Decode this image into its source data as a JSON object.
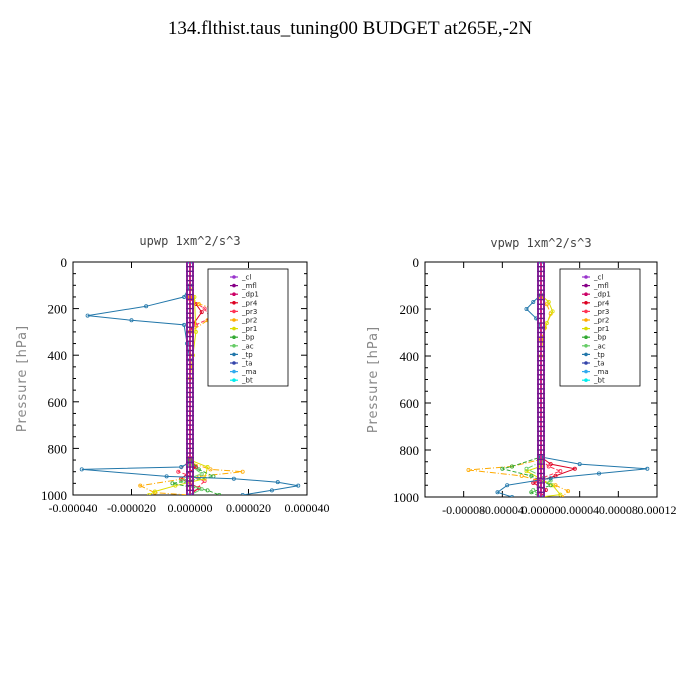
{
  "page_title": "134.flthist.taus_tuning00  BUDGET at265E,-2N",
  "chart_data": [
    {
      "type": "line",
      "title": "upwp   1xm^2/s^3",
      "ylabel": "Pressure [hPa]",
      "ylim": [
        1000,
        0
      ],
      "xlim": [
        -4e-05,
        4e-05
      ],
      "yticks": [
        0,
        200,
        400,
        600,
        800,
        1000
      ],
      "xtick_labels": [
        "-0.000040",
        "-0.000020",
        "0.000000",
        "0.000020",
        "0.000040"
      ],
      "xtick_values": [
        -4e-05,
        -2e-05,
        0.0,
        2e-05,
        4e-05
      ],
      "legend": "top-right",
      "series": [
        {
          "name": "_cl",
          "color": "#9933cc",
          "values": [
            [
              0,
              0
            ],
            [
              0,
              1000
            ]
          ]
        },
        {
          "name": "_mfl",
          "color": "#880088",
          "values": [
            [
              0,
              0
            ],
            [
              0,
              1000
            ]
          ]
        },
        {
          "name": "_dp1",
          "color": "#cc0066",
          "values": [
            [
              0,
              0
            ],
            [
              0,
              1000
            ]
          ]
        },
        {
          "name": "_pr4",
          "color": "#dd0022",
          "values": [
            [
              0,
              0
            ],
            [
              0,
              150
            ],
            [
              2e-06,
              180
            ],
            [
              4e-06,
              215
            ],
            [
              1.5e-06,
              260
            ],
            [
              0,
              300
            ],
            [
              0,
              840
            ],
            [
              2e-06,
              880
            ],
            [
              -3e-06,
              930
            ],
            [
              3e-06,
              970
            ],
            [
              0,
              1000
            ]
          ]
        },
        {
          "name": "_pr3",
          "color": "#ff3355",
          "values": [
            [
              0,
              0
            ],
            [
              0,
              160
            ],
            [
              5e-06,
              200
            ],
            [
              7e-06,
              240
            ],
            [
              2e-06,
              270
            ],
            [
              0,
              300
            ],
            [
              0,
              850
            ],
            [
              -4e-06,
              900
            ],
            [
              5e-06,
              940
            ],
            [
              0,
              1000
            ]
          ]
        },
        {
          "name": "_pr2",
          "color": "#ffaa00",
          "values": [
            [
              0,
              0
            ],
            [
              0,
              150
            ],
            [
              3e-06,
              180
            ],
            [
              8e-06,
              200
            ],
            [
              1.1e-05,
              230
            ],
            [
              6e-06,
              250
            ],
            [
              0,
              300
            ],
            [
              0,
              860
            ],
            [
              7e-06,
              890
            ],
            [
              1.8e-05,
              900
            ],
            [
              3e-06,
              920
            ],
            [
              -1.7e-05,
              960
            ],
            [
              -1.2e-05,
              990
            ],
            [
              0,
              1000
            ]
          ]
        },
        {
          "name": "_pr1",
          "color": "#dddd00",
          "values": [
            [
              0,
              0
            ],
            [
              0,
              100
            ],
            [
              1.5e-06,
              150
            ],
            [
              2e-06,
              300
            ],
            [
              1e-06,
              400
            ],
            [
              0,
              500
            ],
            [
              0,
              850
            ],
            [
              6e-06,
              880
            ],
            [
              5e-06,
              930
            ],
            [
              -5e-06,
              960
            ],
            [
              -1.2e-05,
              985
            ],
            [
              -1.4e-05,
              1000
            ]
          ]
        },
        {
          "name": "_bp",
          "color": "#33aa33",
          "values": [
            [
              0,
              0
            ],
            [
              0,
              850
            ],
            [
              3e-06,
              890
            ],
            [
              8e-06,
              920
            ],
            [
              -6e-06,
              950
            ],
            [
              6e-06,
              980
            ],
            [
              1e-05,
              1000
            ]
          ]
        },
        {
          "name": "_ac",
          "color": "#66cc66",
          "values": [
            [
              0,
              0
            ],
            [
              0,
              870
            ],
            [
              4e-06,
              910
            ],
            [
              -3e-06,
              940
            ],
            [
              4e-06,
              975
            ],
            [
              0,
              1000
            ]
          ]
        },
        {
          "name": "_tp",
          "color": "#2277aa",
          "values": [
            [
              0,
              0
            ],
            [
              0,
              100
            ],
            [
              -2e-06,
              150
            ],
            [
              -1.5e-05,
              190
            ],
            [
              -3.5e-05,
              230
            ],
            [
              -2e-05,
              250
            ],
            [
              -2e-06,
              270
            ],
            [
              -1e-06,
              350
            ],
            [
              0,
              420
            ],
            [
              0,
              860
            ],
            [
              -3e-06,
              880
            ],
            [
              -3.7e-05,
              890
            ],
            [
              -8e-06,
              920
            ],
            [
              1.5e-05,
              930
            ],
            [
              3e-05,
              945
            ],
            [
              3.7e-05,
              960
            ],
            [
              2.8e-05,
              980
            ],
            [
              1.8e-05,
              1000
            ]
          ]
        },
        {
          "name": "_ta",
          "color": "#3344aa",
          "values": [
            [
              0,
              0
            ],
            [
              0,
              1000
            ]
          ]
        },
        {
          "name": "_ma",
          "color": "#33aaee",
          "values": [
            [
              0,
              0
            ],
            [
              0,
              1000
            ]
          ]
        },
        {
          "name": "_bt",
          "color": "#00eeee",
          "values": [
            [
              0,
              0
            ],
            [
              0,
              1000
            ]
          ]
        }
      ]
    },
    {
      "type": "line",
      "title": "vpwp   1xm^2/s^3",
      "ylabel": "Pressure [hPa]",
      "ylim": [
        1000,
        0
      ],
      "xlim": [
        -0.00012,
        0.00012
      ],
      "yticks": [
        0,
        200,
        400,
        600,
        800,
        1000
      ],
      "xtick_labels": [
        "-0.00008",
        "-0.00004",
        "0.00000",
        "0.00004",
        "0.00008",
        "0.00012"
      ],
      "xtick_values": [
        -8e-05,
        -4e-05,
        0.0,
        4e-05,
        8e-05,
        0.00012
      ],
      "legend": "top-right",
      "series": [
        {
          "name": "_cl",
          "color": "#9933cc",
          "values": [
            [
              0,
              0
            ],
            [
              0,
              1000
            ]
          ]
        },
        {
          "name": "_mfl",
          "color": "#880088",
          "values": [
            [
              0,
              0
            ],
            [
              0,
              1000
            ]
          ]
        },
        {
          "name": "_dp1",
          "color": "#cc0066",
          "values": [
            [
              0,
              0
            ],
            [
              0,
              1000
            ]
          ]
        },
        {
          "name": "_pr4",
          "color": "#dd0022",
          "values": [
            [
              0,
              0
            ],
            [
              0,
              830
            ],
            [
              1e-05,
              860
            ],
            [
              3.5e-05,
              880
            ],
            [
              1.5e-05,
              910
            ],
            [
              -8e-06,
              940
            ],
            [
              5e-06,
              970
            ],
            [
              0,
              1000
            ]
          ]
        },
        {
          "name": "_pr3",
          "color": "#ff3355",
          "values": [
            [
              0,
              0
            ],
            [
              0,
              840
            ],
            [
              8e-06,
              870
            ],
            [
              2e-05,
              890
            ],
            [
              -6e-06,
              930
            ],
            [
              0,
              1000
            ]
          ]
        },
        {
          "name": "_pr2",
          "color": "#ffaa00",
          "values": [
            [
              0,
              0
            ],
            [
              0,
              150
            ],
            [
              6e-06,
              180
            ],
            [
              1e-05,
              220
            ],
            [
              4e-06,
              280
            ],
            [
              0,
              330
            ],
            [
              0,
              840
            ],
            [
              -3e-05,
              870
            ],
            [
              -7.5e-05,
              885
            ],
            [
              -2e-05,
              910
            ],
            [
              1.5e-05,
              950
            ],
            [
              2.8e-05,
              975
            ],
            [
              2.2e-05,
              1000
            ]
          ]
        },
        {
          "name": "_pr1",
          "color": "#dddd00",
          "values": [
            [
              0,
              0
            ],
            [
              0,
              140
            ],
            [
              8e-06,
              170
            ],
            [
              1.2e-05,
              210
            ],
            [
              6e-06,
              260
            ],
            [
              2e-06,
              320
            ],
            [
              0,
              400
            ],
            [
              0,
              870
            ],
            [
              -1.5e-05,
              890
            ],
            [
              1.2e-05,
              950
            ],
            [
              2e-05,
              990
            ],
            [
              0,
              1000
            ]
          ]
        },
        {
          "name": "_bp",
          "color": "#33aa33",
          "values": [
            [
              0,
              0
            ],
            [
              0,
              830
            ],
            [
              -3e-05,
              870
            ],
            [
              -4e-05,
              880
            ],
            [
              -1e-05,
              910
            ],
            [
              1e-05,
              950
            ],
            [
              -1e-05,
              980
            ],
            [
              0,
              1000
            ]
          ]
        },
        {
          "name": "_ac",
          "color": "#66cc66",
          "values": [
            [
              0,
              0
            ],
            [
              0,
              850
            ],
            [
              -1.5e-05,
              880
            ],
            [
              1e-05,
              930
            ],
            [
              -8e-06,
              970
            ],
            [
              0,
              1000
            ]
          ]
        },
        {
          "name": "_tp",
          "color": "#2277aa",
          "values": [
            [
              0,
              0
            ],
            [
              0,
              140
            ],
            [
              -8e-06,
              170
            ],
            [
              -1.5e-05,
              200
            ],
            [
              -5e-06,
              240
            ],
            [
              0,
              280
            ],
            [
              0,
              830
            ],
            [
              4e-05,
              860
            ],
            [
              0.00011,
              880
            ],
            [
              6e-05,
              900
            ],
            [
              1e-05,
              920
            ],
            [
              -3.5e-05,
              950
            ],
            [
              -4.5e-05,
              980
            ],
            [
              -3e-05,
              1000
            ]
          ]
        },
        {
          "name": "_ta",
          "color": "#3344aa",
          "values": [
            [
              0,
              0
            ],
            [
              0,
              1000
            ]
          ]
        },
        {
          "name": "_ma",
          "color": "#33aaee",
          "values": [
            [
              0,
              0
            ],
            [
              0,
              1000
            ]
          ]
        },
        {
          "name": "_bt",
          "color": "#00eeee",
          "values": [
            [
              0,
              0
            ],
            [
              0,
              1000
            ]
          ]
        }
      ]
    }
  ]
}
